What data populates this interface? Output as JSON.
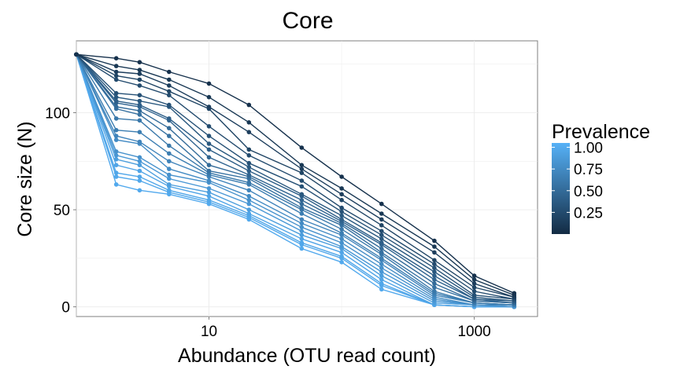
{
  "chart_data": {
    "type": "line",
    "title": "Core",
    "xlabel": "Abundance (OTU read count)",
    "ylabel": "Core size (N)",
    "x_scale": "log10",
    "xlim": [
      1,
      3000
    ],
    "ylim": [
      -5,
      137
    ],
    "x_ticks": [
      {
        "value": 10,
        "label": "10"
      },
      {
        "value": 1000,
        "label": "1000"
      }
    ],
    "y_ticks": [
      {
        "value": 0,
        "label": "0"
      },
      {
        "value": 50,
        "label": "50"
      },
      {
        "value": 100,
        "label": "100"
      }
    ],
    "grid": true,
    "legend": {
      "title": "Prevalence",
      "position": "right",
      "type": "colorbar",
      "low_color": "#132b43",
      "high_color": "#56b1f7",
      "range": [
        0.0,
        1.05
      ],
      "labels": [
        {
          "value": 1.0,
          "label": "1.00"
        },
        {
          "value": 0.75,
          "label": "0.75"
        },
        {
          "value": 0.5,
          "label": "0.50"
        },
        {
          "value": 0.25,
          "label": "0.25"
        }
      ]
    },
    "x": [
      1,
      2,
      3,
      5,
      10,
      20,
      50,
      100,
      200,
      500,
      1000,
      2000
    ],
    "series": [
      {
        "prevalence": 0.05,
        "values": [
          130,
          128,
          126,
          121,
          115,
          104,
          82,
          67,
          53,
          34,
          16,
          7
        ]
      },
      {
        "prevalence": 0.1,
        "values": [
          130,
          124,
          122,
          117,
          108,
          95,
          73,
          61,
          48,
          31,
          14,
          6
        ]
      },
      {
        "prevalence": 0.15,
        "values": [
          130,
          121,
          120,
          114,
          103,
          90,
          71,
          58,
          45,
          28,
          12,
          5
        ]
      },
      {
        "prevalence": 0.2,
        "values": [
          130,
          119,
          117,
          111,
          102,
          81,
          69,
          55,
          42,
          24,
          10,
          5
        ]
      },
      {
        "prevalence": 0.25,
        "values": [
          130,
          117,
          114,
          109,
          93,
          78,
          65,
          51,
          39,
          22,
          8,
          4
        ]
      },
      {
        "prevalence": 0.3,
        "values": [
          130,
          110,
          109,
          104,
          88,
          74,
          62,
          49,
          37,
          20,
          6,
          4
        ]
      },
      {
        "prevalence": 0.35,
        "values": [
          130,
          108,
          106,
          103,
          84,
          72,
          58,
          47,
          35,
          18,
          5,
          3
        ]
      },
      {
        "prevalence": 0.4,
        "values": [
          130,
          106,
          104,
          97,
          81,
          70,
          57,
          45,
          33,
          16,
          4,
          3
        ]
      },
      {
        "prevalence": 0.45,
        "values": [
          130,
          105,
          103,
          96,
          77,
          68,
          55,
          44,
          32,
          14,
          4,
          2
        ]
      },
      {
        "prevalence": 0.5,
        "values": [
          130,
          103,
          101,
          92,
          73,
          67,
          53,
          43,
          30,
          12,
          3,
          2
        ]
      },
      {
        "prevalence": 0.55,
        "values": [
          130,
          102,
          99,
          88,
          70,
          66,
          51,
          42,
          28,
          10,
          3,
          2
        ]
      },
      {
        "prevalence": 0.6,
        "values": [
          130,
          97,
          96,
          83,
          69,
          64,
          50,
          40,
          27,
          8,
          2,
          1
        ]
      },
      {
        "prevalence": 0.65,
        "values": [
          130,
          91,
          90,
          79,
          68,
          63,
          48,
          38,
          25,
          7,
          2,
          1
        ]
      },
      {
        "prevalence": 0.7,
        "values": [
          130,
          88,
          85,
          75,
          67,
          60,
          45,
          37,
          24,
          6,
          2,
          1
        ]
      },
      {
        "prevalence": 0.75,
        "values": [
          130,
          86,
          84,
          71,
          65,
          57,
          43,
          35,
          22,
          5,
          1,
          1
        ]
      },
      {
        "prevalence": 0.8,
        "values": [
          130,
          80,
          77,
          68,
          64,
          55,
          41,
          33,
          20,
          4,
          1,
          0
        ]
      },
      {
        "prevalence": 0.85,
        "values": [
          130,
          78,
          75,
          66,
          61,
          53,
          39,
          31,
          18,
          3,
          1,
          0
        ]
      },
      {
        "prevalence": 0.9,
        "values": [
          130,
          76,
          73,
          63,
          59,
          50,
          37,
          30,
          16,
          2,
          1,
          0
        ]
      },
      {
        "prevalence": 0.95,
        "values": [
          130,
          73,
          70,
          62,
          57,
          48,
          35,
          28,
          14,
          1,
          0,
          0
        ]
      },
      {
        "prevalence": 0.97,
        "values": [
          130,
          69,
          67,
          60,
          55,
          47,
          33,
          26,
          12,
          1,
          0,
          0
        ]
      },
      {
        "prevalence": 0.98,
        "values": [
          130,
          67,
          65,
          59,
          54,
          46,
          32,
          25,
          11,
          1,
          0,
          0
        ]
      },
      {
        "prevalence": 0.99,
        "values": [
          130,
          63,
          60,
          58,
          53,
          45,
          30,
          23,
          9,
          1,
          0,
          0
        ]
      }
    ]
  }
}
